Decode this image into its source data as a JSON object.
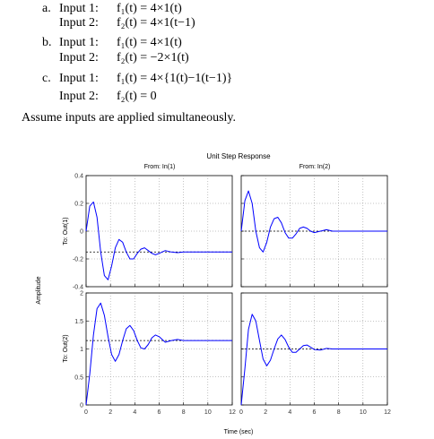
{
  "problem": {
    "items": [
      {
        "letter": "a.",
        "lines": [
          {
            "lead": "Input 1:",
            "expr": "f₁(t) = 4×1(t)"
          },
          {
            "lead": "Input 2:",
            "expr": "f₂(t) = 4×1(t−1)"
          }
        ]
      },
      {
        "letter": "b.",
        "lines": [
          {
            "lead": "Input 1:",
            "expr": "f₁(t) = 4×1(t)"
          },
          {
            "lead": "Input 2:",
            "expr": "f₂(t) = −2×1(t)"
          }
        ]
      },
      {
        "letter": "c.",
        "lines": [
          {
            "lead": "Input 1:",
            "expr": "f₁(t) = 4×{1(t)−1(t−1)}"
          },
          {
            "lead": "Input 2:",
            "expr": "f₂(t) = 0"
          }
        ]
      }
    ],
    "assume": "Assume inputs are applied simultaneously."
  },
  "figure": {
    "title": "Unit Step Response",
    "col_labels": [
      "From: In(1)",
      "From: In(2)"
    ],
    "row_labels": [
      "To: Out(1)",
      "To: Out(2)"
    ],
    "ylabel": "Amplitude",
    "xlabel": "Time (sec)"
  },
  "chart_data": {
    "type": "line",
    "title": "Unit Step Response",
    "xlabel": "Time (sec)",
    "ylabel": "Amplitude",
    "xlim": [
      0,
      12
    ],
    "x_ticks": [
      0,
      2,
      4,
      6,
      8,
      10,
      12
    ],
    "grid": true,
    "line_color": "#0000ff",
    "steady_color": "#000000",
    "panels": [
      {
        "row": 0,
        "col": 0,
        "from": "In(1)",
        "to": "Out(1)",
        "ylim": [
          -0.4,
          0.4
        ],
        "y_ticks": [
          -0.4,
          -0.2,
          0,
          0.2,
          0.4
        ],
        "steady": -0.15,
        "x": [
          0,
          0.3,
          0.6,
          0.9,
          1.2,
          1.5,
          1.8,
          2.1,
          2.4,
          2.7,
          3.0,
          3.3,
          3.6,
          3.9,
          4.2,
          4.5,
          4.8,
          5.1,
          5.4,
          5.7,
          6.0,
          6.5,
          7.0,
          7.5,
          8.0,
          9.0,
          10.0,
          11.0,
          12.0
        ],
        "y": [
          0,
          0.18,
          0.21,
          0.1,
          -0.15,
          -0.32,
          -0.35,
          -0.25,
          -0.12,
          -0.06,
          -0.08,
          -0.15,
          -0.2,
          -0.2,
          -0.16,
          -0.13,
          -0.12,
          -0.14,
          -0.16,
          -0.17,
          -0.16,
          -0.14,
          -0.15,
          -0.155,
          -0.15,
          -0.15,
          -0.15,
          -0.15,
          -0.15
        ]
      },
      {
        "row": 0,
        "col": 1,
        "from": "In(2)",
        "to": "Out(1)",
        "ylim": [
          -0.4,
          0.4
        ],
        "y_ticks": [
          -0.4,
          -0.2,
          0,
          0.2,
          0.4
        ],
        "steady": 0,
        "x": [
          0,
          0.3,
          0.6,
          0.9,
          1.2,
          1.5,
          1.8,
          2.1,
          2.4,
          2.7,
          3.0,
          3.3,
          3.6,
          3.9,
          4.2,
          4.5,
          4.8,
          5.1,
          5.4,
          5.7,
          6.0,
          6.5,
          7.0,
          7.5,
          8.0,
          9.0,
          10.0,
          11.0,
          12.0
        ],
        "y": [
          0,
          0.22,
          0.29,
          0.2,
          0.0,
          -0.12,
          -0.15,
          -0.08,
          0.03,
          0.09,
          0.1,
          0.06,
          -0.01,
          -0.05,
          -0.05,
          -0.02,
          0.02,
          0.03,
          0.02,
          0.0,
          -0.01,
          0.0,
          0.01,
          0.0,
          0.0,
          0.0,
          0.0,
          0.0,
          0.0
        ]
      },
      {
        "row": 1,
        "col": 0,
        "from": "In(1)",
        "to": "Out(2)",
        "ylim": [
          0,
          2
        ],
        "y_ticks": [
          0,
          0.5,
          1,
          1.5,
          2
        ],
        "steady": 1.15,
        "x": [
          0,
          0.3,
          0.6,
          0.9,
          1.2,
          1.5,
          1.8,
          2.1,
          2.4,
          2.7,
          3.0,
          3.3,
          3.6,
          3.9,
          4.2,
          4.5,
          4.8,
          5.1,
          5.4,
          5.7,
          6.0,
          6.5,
          7.0,
          7.5,
          8.0,
          9.0,
          10.0,
          11.0,
          12.0
        ],
        "y": [
          0,
          0.55,
          1.25,
          1.72,
          1.82,
          1.6,
          1.22,
          0.9,
          0.78,
          0.9,
          1.15,
          1.36,
          1.42,
          1.33,
          1.15,
          1.02,
          1.0,
          1.08,
          1.2,
          1.25,
          1.22,
          1.12,
          1.15,
          1.17,
          1.15,
          1.15,
          1.15,
          1.15,
          1.15
        ]
      },
      {
        "row": 1,
        "col": 1,
        "from": "In(2)",
        "to": "Out(2)",
        "ylim": [
          0,
          2
        ],
        "y_ticks": [
          0,
          0.5,
          1,
          1.5,
          2
        ],
        "steady": 1.0,
        "x": [
          0,
          0.3,
          0.6,
          0.9,
          1.2,
          1.5,
          1.8,
          2.1,
          2.4,
          2.7,
          3.0,
          3.3,
          3.6,
          3.9,
          4.2,
          4.5,
          4.8,
          5.1,
          5.4,
          5.7,
          6.0,
          6.5,
          7.0,
          7.5,
          8.0,
          9.0,
          10.0,
          11.0,
          12.0
        ],
        "y": [
          0,
          0.65,
          1.35,
          1.62,
          1.5,
          1.15,
          0.82,
          0.7,
          0.8,
          1.0,
          1.18,
          1.25,
          1.17,
          1.03,
          0.94,
          0.94,
          1.0,
          1.06,
          1.07,
          1.03,
          0.99,
          0.98,
          1.01,
          1.0,
          1.0,
          1.0,
          1.0,
          1.0,
          1.0
        ]
      }
    ]
  }
}
